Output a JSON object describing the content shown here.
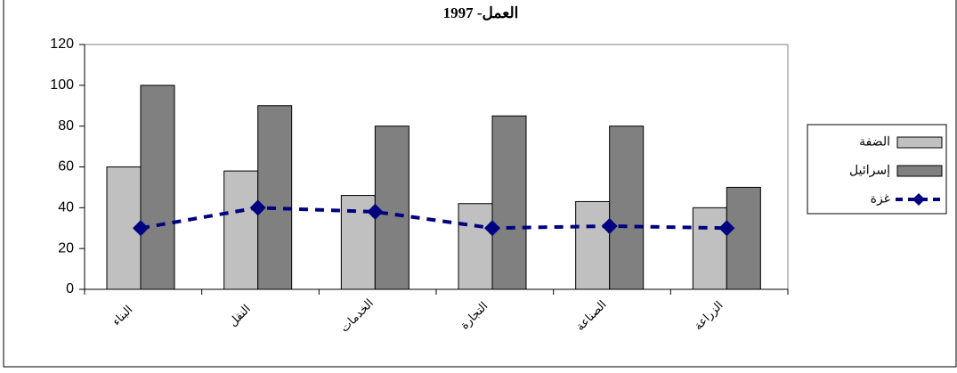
{
  "chart_data": {
    "type": "bar",
    "title": "العمل- 1997",
    "categories": [
      "البناء",
      "النقل",
      "الخدمات",
      "التجارة",
      "الصناعة",
      "الزراعة"
    ],
    "series": [
      {
        "name": "الضفة",
        "color": "#c0c0c0",
        "values": [
          60,
          58,
          46,
          42,
          43,
          40
        ]
      },
      {
        "name": "إسرائيل",
        "color": "#808080",
        "values": [
          100,
          90,
          80,
          85,
          80,
          50
        ]
      },
      {
        "name": "غزة",
        "color": "#000080",
        "type": "line",
        "values": [
          30,
          40,
          38,
          30,
          31,
          30
        ]
      }
    ],
    "ylim": [
      0,
      120
    ],
    "yticks": [
      0,
      20,
      40,
      60,
      80,
      100,
      120
    ],
    "legend": "right"
  }
}
